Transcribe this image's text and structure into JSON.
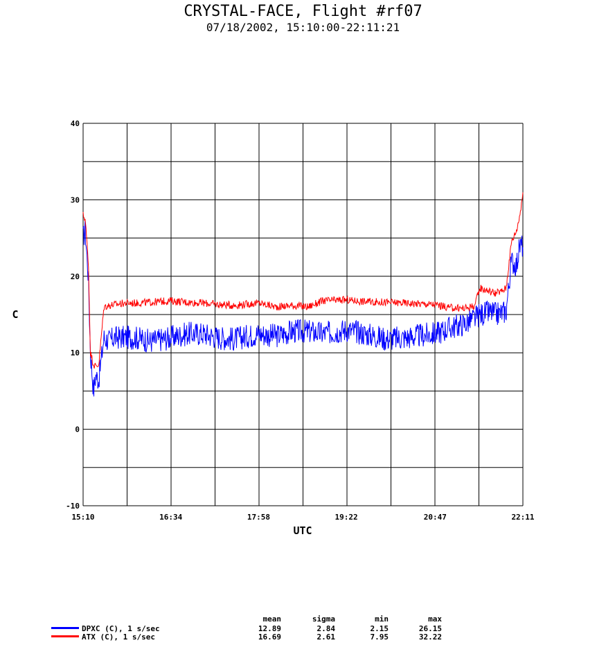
{
  "title": "CRYSTAL-FACE, Flight #rf07",
  "subtitle": "07/18/2002, 15:10:00-22:11:21",
  "chart_data": {
    "type": "line",
    "title": "CRYSTAL-FACE, Flight #rf07",
    "subtitle": "07/18/2002, 15:10:00-22:11:21",
    "xlabel": "UTC",
    "ylabel": "C",
    "xlim": [
      "15:10",
      "22:11"
    ],
    "ylim": [
      -10,
      40
    ],
    "x_ticks": [
      "15:10",
      "16:34",
      "17:58",
      "19:22",
      "20:47",
      "22:11"
    ],
    "y_ticks": [
      -10,
      0,
      10,
      20,
      30,
      40
    ],
    "grid": true,
    "x": [
      "15:10",
      "15:12",
      "15:15",
      "15:17",
      "15:20",
      "15:22",
      "15:25",
      "15:30",
      "15:35",
      "15:40",
      "15:50",
      "16:00",
      "16:15",
      "16:34",
      "16:50",
      "17:05",
      "17:20",
      "17:35",
      "17:58",
      "18:15",
      "18:30",
      "18:45",
      "19:00",
      "19:22",
      "19:40",
      "20:00",
      "20:20",
      "20:47",
      "21:00",
      "21:15",
      "21:25",
      "21:30",
      "21:40",
      "21:45",
      "21:50",
      "21:55",
      "22:00",
      "22:05",
      "22:08",
      "22:11"
    ],
    "series": [
      {
        "name": "DPXC (C), 1 s/sec",
        "color": "#0000ff",
        "values": [
          25,
          26,
          20,
          10,
          5,
          7,
          6.5,
          12,
          11.5,
          12,
          12,
          12,
          11.5,
          12,
          12.5,
          12.5,
          12,
          11.8,
          12.5,
          12.2,
          12.8,
          12.8,
          12.5,
          13,
          12.5,
          11.8,
          12,
          12.5,
          13.2,
          13.8,
          14.5,
          15,
          15.3,
          15,
          15.2,
          15.5,
          22,
          21.5,
          24,
          24
        ]
      },
      {
        "name": "ATX (C), 1 s/sec",
        "color": "#ff0000",
        "values": [
          28,
          27.5,
          22,
          10,
          8.5,
          8.2,
          8.5,
          16,
          16.2,
          16.3,
          16.5,
          16.5,
          16.6,
          16.8,
          16.6,
          16.5,
          16.3,
          16.2,
          16.5,
          16,
          16.2,
          16,
          16.8,
          16.9,
          16.7,
          16.6,
          16.5,
          16.3,
          15.9,
          15.8,
          16.2,
          18.5,
          18,
          17.8,
          18,
          18.5,
          24.5,
          26,
          28,
          31
        ]
      }
    ],
    "stats": {
      "headers": [
        "mean",
        "sigma",
        "min",
        "max"
      ],
      "rows": [
        {
          "name": "DPXC (C), 1 s/sec",
          "mean": "12.89",
          "sigma": "2.84",
          "min": "2.15",
          "max": "26.15"
        },
        {
          "name": "ATX (C), 1 s/sec",
          "mean": "16.69",
          "sigma": "2.61",
          "min": "7.95",
          "max": "32.22"
        }
      ]
    }
  }
}
